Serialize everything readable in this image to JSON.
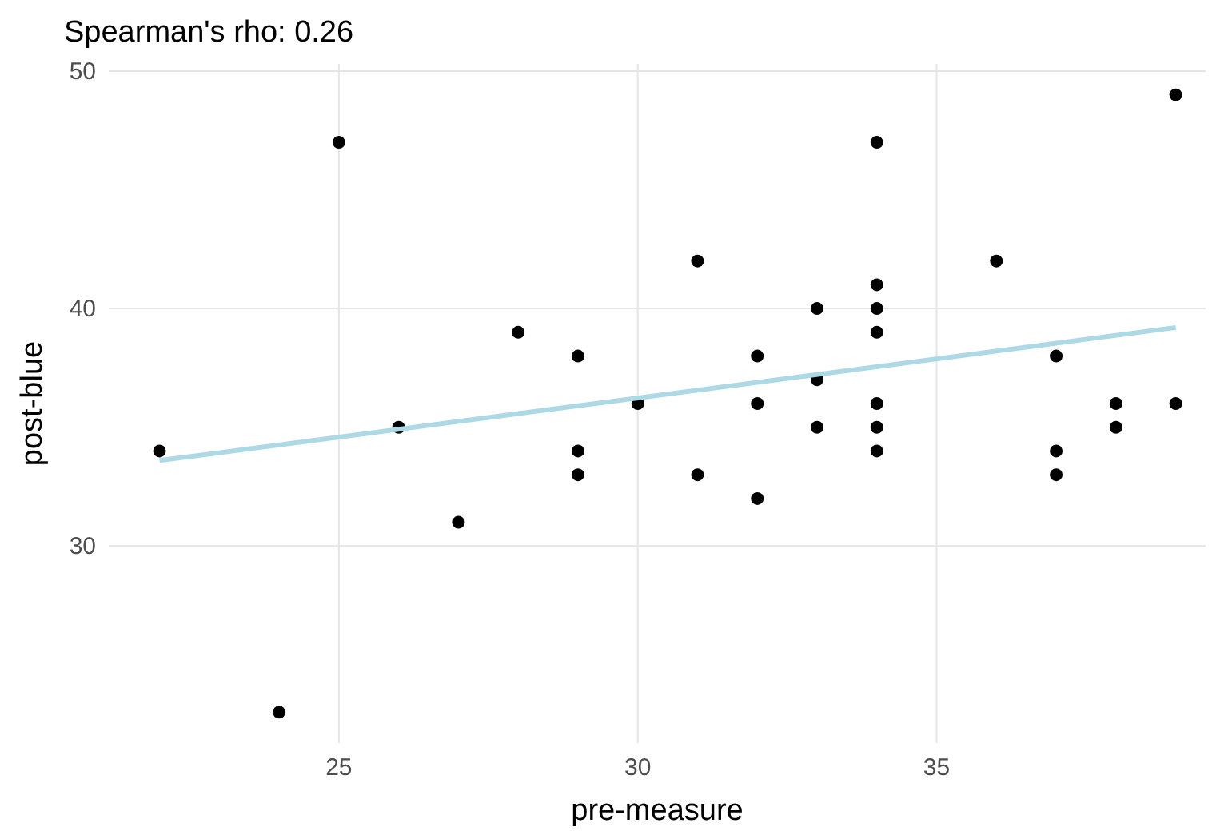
{
  "chart_data": {
    "type": "scatter",
    "title": "Spearman's rho: 0.26",
    "xlabel": "pre-measure",
    "ylabel": "post-blue",
    "xlim": [
      21.15,
      39.5
    ],
    "ylim": [
      21.7,
      50.3
    ],
    "xticks": [
      25,
      30,
      35
    ],
    "yticks": [
      30,
      40,
      50
    ],
    "grid": true,
    "series": [
      {
        "marker": "circle",
        "color": "#000000",
        "x": [
          22,
          24,
          25,
          26,
          27,
          28,
          29,
          29,
          29,
          30,
          31,
          31,
          32,
          32,
          32,
          33,
          33,
          33,
          34,
          34,
          34,
          34,
          34,
          34,
          34,
          36,
          37,
          37,
          37,
          38,
          38,
          39,
          39
        ],
        "values": [
          34,
          23,
          47,
          35,
          31,
          39,
          38,
          34,
          33,
          36,
          42,
          33,
          38,
          36,
          32,
          40,
          37,
          35,
          47,
          41,
          40,
          39,
          36,
          35,
          34,
          42,
          38,
          34,
          33,
          36,
          35,
          49,
          36
        ]
      },
      {
        "type": "line",
        "color": "#add8e6",
        "x": [
          22,
          39
        ],
        "values": [
          33.6,
          39.2
        ]
      }
    ]
  }
}
